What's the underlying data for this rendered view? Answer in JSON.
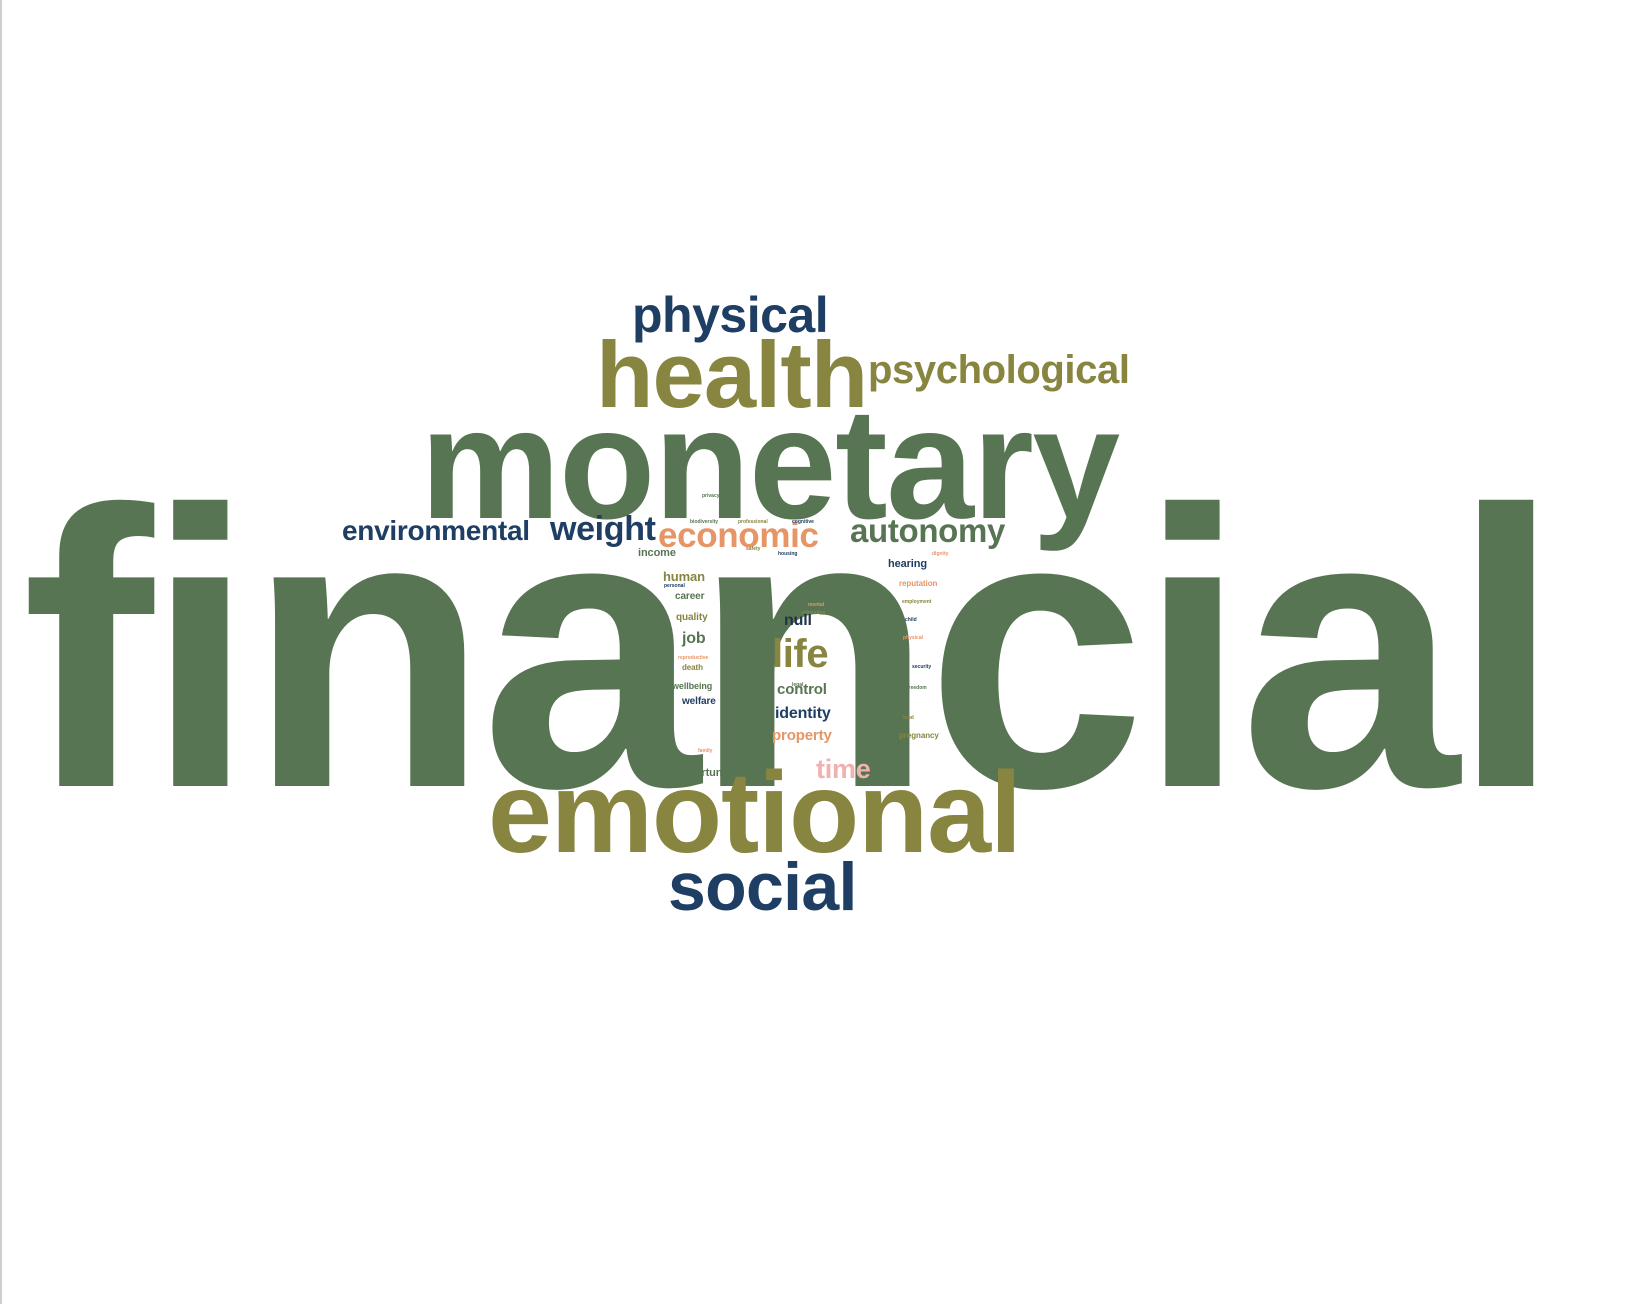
{
  "words": {
    "financial": "financial",
    "monetary": "monetary",
    "health": "health",
    "physical": "physical",
    "psychological": "psychological",
    "environmental": "environmental",
    "weight": "weight",
    "economic": "economic",
    "autonomy": "autonomy",
    "emotional": "emotional",
    "social": "social",
    "life": "life",
    "null": "null",
    "control": "control",
    "identity": "identity",
    "property": "property",
    "time": "time",
    "income": "income",
    "human": "human",
    "career": "career",
    "quality": "quality",
    "job": "job",
    "death": "death",
    "wellbeing": "wellbeing",
    "welfare": "welfare",
    "opportunity": "opportunity",
    "hearing": "hearing",
    "reputation": "reputation",
    "pregnancy": "pregnancy"
  },
  "small_words": [
    "biodiversity",
    "professional",
    "cognitive",
    "mental",
    "independence",
    "employment",
    "child",
    "physical",
    "freedom",
    "food",
    "personal",
    "reproductive",
    "privacy",
    "safety",
    "housing",
    "dignity",
    "legal",
    "education",
    "security",
    "family"
  ],
  "colors": {
    "green": "#587553",
    "olive": "#87853f",
    "blue": "#1f3e63",
    "orange": "#e69566",
    "pink": "#f0b1b1",
    "dark": "#1f3346",
    "background": "#ffffff"
  }
}
